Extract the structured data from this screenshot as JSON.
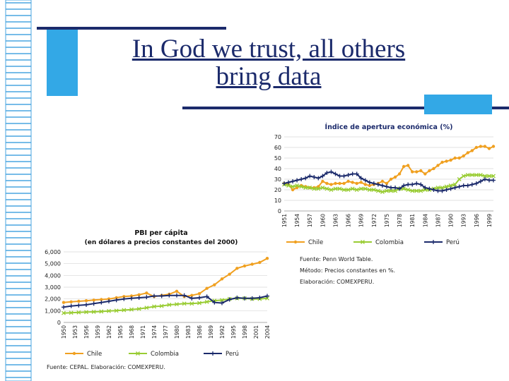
{
  "slide": {
    "title_line1": "In God we trust, all others",
    "title_line2": "bring data"
  },
  "colors": {
    "navy": "#1b2a6b",
    "accent_blue": "#33a8e6",
    "chile": "#f0a020",
    "colombia": "#99cc33",
    "peru": "#1b2a6b"
  },
  "chart_data": [
    {
      "type": "line",
      "title": "Índice de apertura económica (%)",
      "ylim": [
        0,
        70
      ],
      "yticks": [
        0,
        10,
        20,
        30,
        40,
        50,
        60,
        70
      ],
      "x_ticks": [
        "1951",
        "1954",
        "1957",
        "1960",
        "1963",
        "1966",
        "1969",
        "1972",
        "1975",
        "1978",
        "1981",
        "1984",
        "1987",
        "1990",
        "1993",
        "1996",
        "1999"
      ],
      "x": [
        1951,
        1952,
        1953,
        1954,
        1955,
        1956,
        1957,
        1958,
        1959,
        1960,
        1961,
        1962,
        1963,
        1964,
        1965,
        1966,
        1967,
        1968,
        1969,
        1970,
        1971,
        1972,
        1973,
        1974,
        1975,
        1976,
        1977,
        1978,
        1979,
        1980,
        1981,
        1982,
        1983,
        1984,
        1985,
        1986,
        1987,
        1988,
        1989,
        1990,
        1991,
        1992,
        1993,
        1994,
        1995,
        1996,
        1997,
        1998,
        1999,
        2000
      ],
      "series": [
        {
          "name": "Chile",
          "values": [
            26,
            25,
            20,
            22,
            24,
            23,
            22,
            22,
            23,
            28,
            26,
            25,
            26,
            26,
            26,
            28,
            27,
            26,
            27,
            25,
            24,
            25,
            26,
            28,
            26,
            30,
            32,
            35,
            42,
            43,
            37,
            37,
            38,
            35,
            38,
            40,
            43,
            46,
            47,
            48,
            50,
            50,
            52,
            55,
            57,
            60,
            61,
            61,
            59,
            61
          ]
        },
        {
          "name": "Colombia",
          "values": [
            25,
            24,
            23,
            24,
            23,
            22,
            22,
            21,
            21,
            22,
            21,
            20,
            21,
            21,
            20,
            20,
            21,
            20,
            21,
            21,
            20,
            20,
            19,
            18,
            19,
            19,
            19,
            21,
            21,
            20,
            19,
            19,
            19,
            20,
            20,
            21,
            22,
            22,
            23,
            24,
            25,
            30,
            33,
            34,
            34,
            34,
            34,
            33,
            33,
            33
          ]
        },
        {
          "name": "Perú",
          "values": [
            26,
            27,
            28,
            29,
            30,
            31,
            33,
            32,
            31,
            33,
            36,
            37,
            35,
            33,
            33,
            34,
            35,
            35,
            31,
            29,
            27,
            26,
            25,
            24,
            23,
            22,
            22,
            21,
            24,
            25,
            25,
            26,
            25,
            22,
            21,
            20,
            19,
            19,
            20,
            21,
            22,
            23,
            24,
            24,
            25,
            26,
            28,
            30,
            29,
            29
          ]
        }
      ],
      "legend": [
        "Chile",
        "Colombia",
        "Perú"
      ]
    },
    {
      "type": "line",
      "title": "PBI per cápita",
      "subtitle": "(en dólares a precios constantes del 2000)",
      "ylim": [
        0,
        6000
      ],
      "yticks": [
        "0",
        "1,000",
        "2,000",
        "3,000",
        "4,000",
        "5,000",
        "6,000"
      ],
      "x_ticks": [
        "1950",
        "1953",
        "1956",
        "1959",
        "1962",
        "1965",
        "1968",
        "1971",
        "1974",
        "1977",
        "1980",
        "1983",
        "1986",
        "1989",
        "1992",
        "1995",
        "1998",
        "2001",
        "2004"
      ],
      "x": [
        1950,
        1952,
        1954,
        1956,
        1958,
        1960,
        1962,
        1964,
        1966,
        1968,
        1970,
        1972,
        1974,
        1976,
        1978,
        1980,
        1982,
        1984,
        1986,
        1988,
        1990,
        1992,
        1994,
        1996,
        1998,
        2000,
        2002,
        2004
      ],
      "series": [
        {
          "name": "Chile",
          "values": [
            1700,
            1750,
            1800,
            1850,
            1900,
            1950,
            2000,
            2100,
            2200,
            2250,
            2350,
            2500,
            2200,
            2300,
            2400,
            2650,
            2200,
            2300,
            2450,
            2900,
            3200,
            3700,
            4100,
            4600,
            4800,
            4950,
            5100,
            5450
          ]
        },
        {
          "name": "Colombia",
          "values": [
            800,
            820,
            850,
            880,
            900,
            930,
            970,
            1000,
            1050,
            1100,
            1150,
            1250,
            1350,
            1400,
            1500,
            1550,
            1600,
            1600,
            1650,
            1750,
            1850,
            1900,
            2000,
            2050,
            2050,
            2000,
            2000,
            2050
          ]
        },
        {
          "name": "Perú",
          "values": [
            1300,
            1400,
            1450,
            1500,
            1600,
            1700,
            1800,
            1900,
            2000,
            2050,
            2100,
            2150,
            2250,
            2250,
            2300,
            2300,
            2300,
            2050,
            2100,
            2200,
            1700,
            1650,
            1950,
            2100,
            2050,
            2050,
            2100,
            2250
          ]
        }
      ],
      "legend": [
        "Chile",
        "Colombia",
        "Perú"
      ],
      "source": "Fuente: CEPAL. Elaboración: COMEXPERU."
    }
  ],
  "notes": {
    "line1": "Fuente: Penn World Table.",
    "line2": "Método: Precios constantes en %.",
    "line3": "Elaboración: COMEXPERU."
  }
}
